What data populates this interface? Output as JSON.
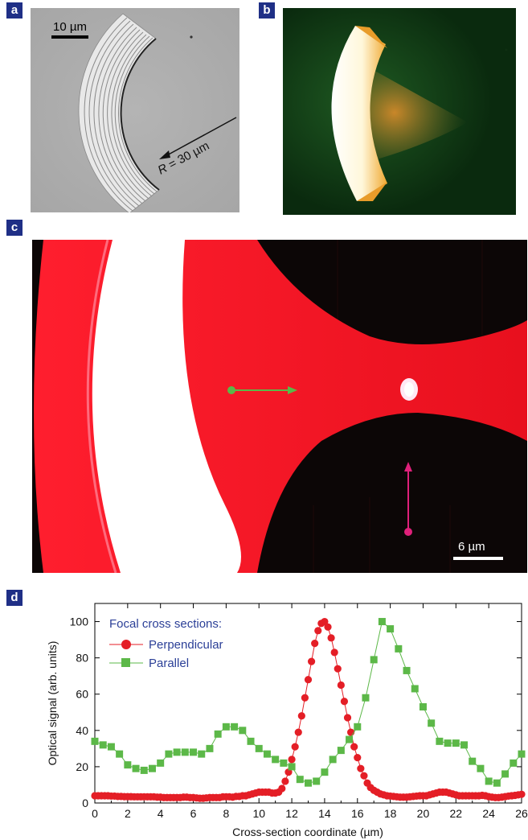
{
  "panel_labels": {
    "a": "a",
    "b": "b",
    "c": "c",
    "d": "d"
  },
  "panel_a": {
    "scale_bar_label": "10 µm",
    "radius_label_var": "R",
    "radius_label_rest": " = 30 µm"
  },
  "panel_c": {
    "scale_bar_label": "6 µm"
  },
  "colors": {
    "perpendicular": "#e41e26",
    "parallel": "#5cb848",
    "legend_text": "#2b3f97",
    "badge": "#1f2f86"
  },
  "chart_data": {
    "type": "scatter",
    "title": "",
    "xlabel": "Cross-section coordinate (µm)",
    "ylabel": "Optical signal (arb. units)",
    "xlim": [
      0,
      26
    ],
    "ylim": [
      0,
      110
    ],
    "xticks": [
      "0",
      "2",
      "4",
      "6",
      "8",
      "10",
      "12",
      "14",
      "16",
      "18",
      "20",
      "22",
      "24",
      "26"
    ],
    "yticks": [
      "0",
      "20",
      "40",
      "60",
      "80",
      "100"
    ],
    "legend_title": "Focal cross sections:",
    "legend_position": "top-left",
    "series": [
      {
        "name": "Perpendicular",
        "marker": "circle",
        "points": [
          [
            0,
            4
          ],
          [
            0.2,
            4
          ],
          [
            0.4,
            4
          ],
          [
            0.6,
            4
          ],
          [
            0.8,
            4
          ],
          [
            1,
            3.8
          ],
          [
            1.2,
            3.8
          ],
          [
            1.4,
            3.6
          ],
          [
            1.6,
            3.6
          ],
          [
            1.8,
            3.5
          ],
          [
            2,
            3.5
          ],
          [
            2.2,
            3.5
          ],
          [
            2.4,
            3.4
          ],
          [
            2.6,
            3.4
          ],
          [
            2.8,
            3.4
          ],
          [
            3,
            3.4
          ],
          [
            3.2,
            3.4
          ],
          [
            3.4,
            3.4
          ],
          [
            3.6,
            3.4
          ],
          [
            3.8,
            3.2
          ],
          [
            4,
            3.2
          ],
          [
            4.2,
            3
          ],
          [
            4.4,
            3
          ],
          [
            4.6,
            3
          ],
          [
            4.8,
            3
          ],
          [
            5,
            3
          ],
          [
            5.2,
            3
          ],
          [
            5.4,
            3.2
          ],
          [
            5.6,
            3.2
          ],
          [
            5.8,
            3
          ],
          [
            6,
            3
          ],
          [
            6.2,
            2.8
          ],
          [
            6.4,
            2.6
          ],
          [
            6.6,
            2.6
          ],
          [
            6.8,
            2.8
          ],
          [
            7,
            3
          ],
          [
            7.2,
            3
          ],
          [
            7.4,
            3
          ],
          [
            7.6,
            3
          ],
          [
            7.8,
            3.4
          ],
          [
            8,
            3.4
          ],
          [
            8.2,
            3.4
          ],
          [
            8.4,
            3.2
          ],
          [
            8.6,
            3.6
          ],
          [
            8.8,
            3.6
          ],
          [
            9,
            4
          ],
          [
            9.2,
            4
          ],
          [
            9.4,
            4.5
          ],
          [
            9.6,
            5
          ],
          [
            9.8,
            5.5
          ],
          [
            10,
            6
          ],
          [
            10.2,
            6
          ],
          [
            10.4,
            6
          ],
          [
            10.6,
            6
          ],
          [
            10.8,
            5.5
          ],
          [
            11,
            5.5
          ],
          [
            11.2,
            6
          ],
          [
            11.4,
            8
          ],
          [
            11.6,
            12
          ],
          [
            11.8,
            17
          ],
          [
            12,
            24
          ],
          [
            12.2,
            31
          ],
          [
            12.4,
            39
          ],
          [
            12.6,
            48
          ],
          [
            12.8,
            58
          ],
          [
            13,
            68
          ],
          [
            13.2,
            78
          ],
          [
            13.4,
            88
          ],
          [
            13.6,
            95
          ],
          [
            13.8,
            99
          ],
          [
            14,
            100
          ],
          [
            14.2,
            97
          ],
          [
            14.4,
            91
          ],
          [
            14.6,
            83
          ],
          [
            14.8,
            74
          ],
          [
            15,
            65
          ],
          [
            15.2,
            56
          ],
          [
            15.4,
            47
          ],
          [
            15.6,
            39
          ],
          [
            15.8,
            31
          ],
          [
            16,
            25
          ],
          [
            16.2,
            19
          ],
          [
            16.4,
            15
          ],
          [
            16.6,
            11
          ],
          [
            16.8,
            8.5
          ],
          [
            17,
            7
          ],
          [
            17.2,
            6
          ],
          [
            17.4,
            5
          ],
          [
            17.6,
            4.5
          ],
          [
            17.8,
            4
          ],
          [
            18,
            3.8
          ],
          [
            18.2,
            3.6
          ],
          [
            18.4,
            3.4
          ],
          [
            18.6,
            3.2
          ],
          [
            18.8,
            3.2
          ],
          [
            19,
            3.2
          ],
          [
            19.2,
            3.4
          ],
          [
            19.4,
            3.6
          ],
          [
            19.6,
            3.8
          ],
          [
            19.8,
            4
          ],
          [
            20,
            4
          ],
          [
            20.2,
            4
          ],
          [
            20.4,
            4.5
          ],
          [
            20.6,
            5
          ],
          [
            20.8,
            5.5
          ],
          [
            21,
            6
          ],
          [
            21.2,
            6
          ],
          [
            21.4,
            6
          ],
          [
            21.6,
            5.5
          ],
          [
            21.8,
            5
          ],
          [
            22,
            4.5
          ],
          [
            22.2,
            4
          ],
          [
            22.4,
            4
          ],
          [
            22.6,
            4
          ],
          [
            22.8,
            4
          ],
          [
            23,
            4
          ],
          [
            23.2,
            4
          ],
          [
            23.4,
            4
          ],
          [
            23.6,
            4.2
          ],
          [
            23.8,
            4
          ],
          [
            24,
            3.5
          ],
          [
            24.2,
            3.2
          ],
          [
            24.4,
            3
          ],
          [
            24.6,
            3
          ],
          [
            24.8,
            3.2
          ],
          [
            25,
            3.5
          ],
          [
            25.2,
            3.8
          ],
          [
            25.4,
            4
          ],
          [
            25.6,
            4.2
          ],
          [
            25.8,
            4.5
          ],
          [
            26,
            4.8
          ]
        ]
      },
      {
        "name": "Parallel",
        "marker": "square",
        "points": [
          [
            0,
            34
          ],
          [
            0.5,
            32
          ],
          [
            1,
            31
          ],
          [
            1.5,
            27
          ],
          [
            2,
            21
          ],
          [
            2.5,
            19
          ],
          [
            3,
            18
          ],
          [
            3.5,
            19
          ],
          [
            4,
            22
          ],
          [
            4.5,
            27
          ],
          [
            5,
            28
          ],
          [
            5.5,
            28
          ],
          [
            6,
            28
          ],
          [
            6.5,
            27
          ],
          [
            7,
            30
          ],
          [
            7.5,
            38
          ],
          [
            8,
            42
          ],
          [
            8.5,
            42
          ],
          [
            9,
            40
          ],
          [
            9.5,
            34
          ],
          [
            10,
            30
          ],
          [
            10.5,
            27
          ],
          [
            11,
            24
          ],
          [
            11.5,
            22
          ],
          [
            12,
            20
          ],
          [
            12.5,
            13
          ],
          [
            13,
            11
          ],
          [
            13.5,
            12
          ],
          [
            14,
            17
          ],
          [
            14.5,
            24
          ],
          [
            15,
            29
          ],
          [
            15.5,
            35
          ],
          [
            16,
            42
          ],
          [
            16.5,
            58
          ],
          [
            17,
            79
          ],
          [
            17.5,
            100
          ],
          [
            18,
            96
          ],
          [
            18.5,
            85
          ],
          [
            19,
            73
          ],
          [
            19.5,
            63
          ],
          [
            20,
            53
          ],
          [
            20.5,
            44
          ],
          [
            21,
            34
          ],
          [
            21.5,
            33
          ],
          [
            22,
            33
          ],
          [
            22.5,
            32
          ],
          [
            23,
            23
          ],
          [
            23.5,
            19
          ],
          [
            24,
            12
          ],
          [
            24.5,
            11
          ],
          [
            25,
            16
          ],
          [
            25.5,
            22
          ],
          [
            26,
            27
          ]
        ]
      }
    ]
  }
}
